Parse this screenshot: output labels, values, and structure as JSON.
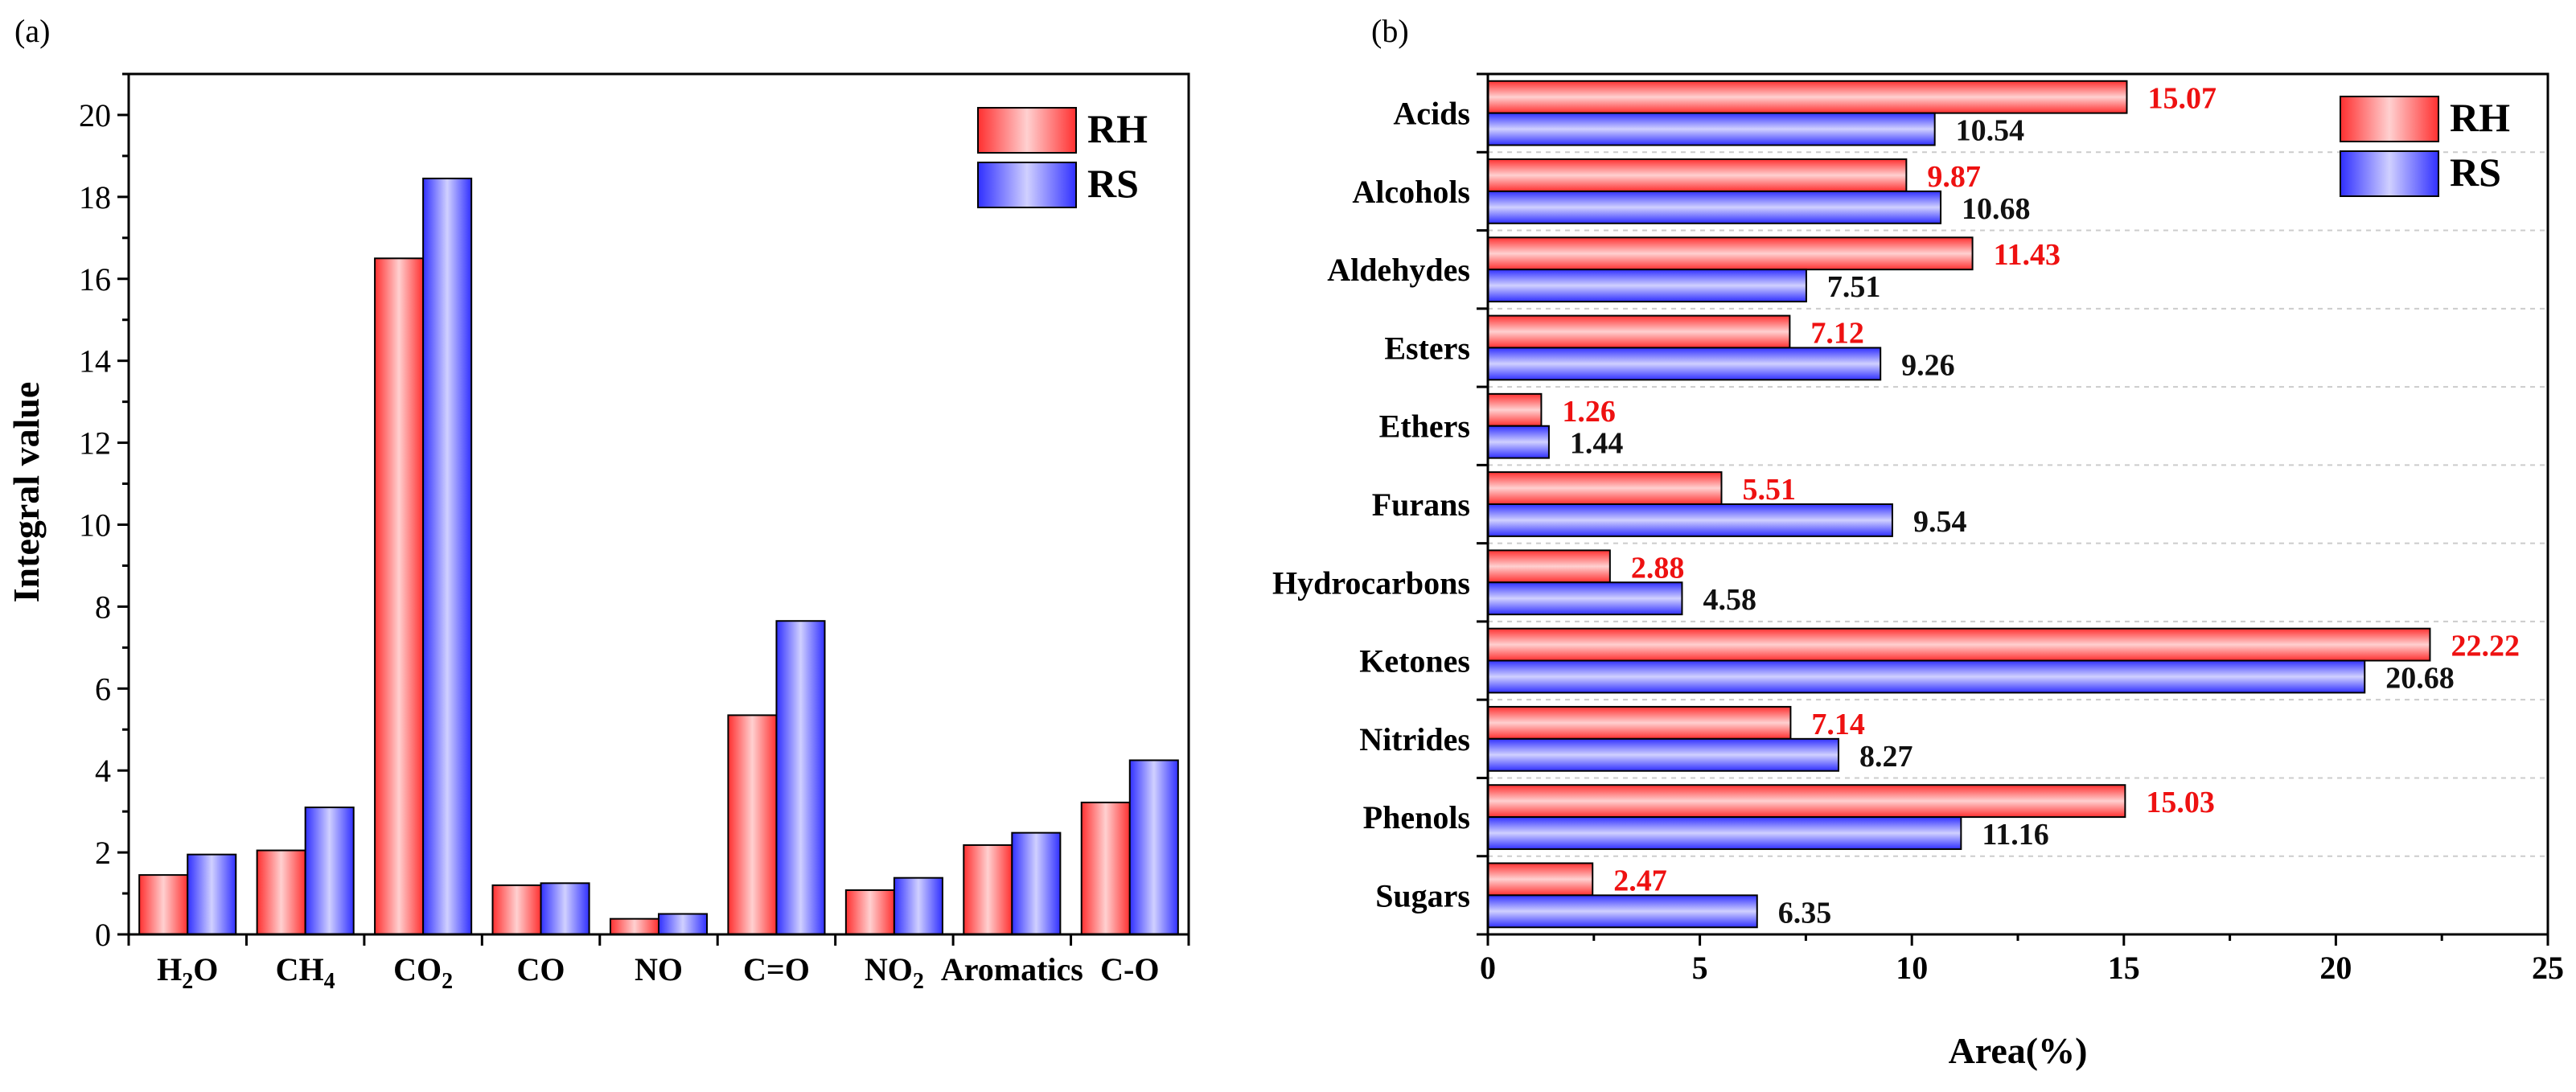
{
  "colors": {
    "rh_fill": "#ff4a4a",
    "rs_fill": "#4a4aff",
    "rh_label": "#ee1111",
    "rs_label": "#111111",
    "axis": "#000000",
    "grid": "#cccccc"
  },
  "chart_data": [
    {
      "panel_label": "(a)",
      "type": "bar",
      "orientation": "vertical",
      "ylabel": "Integral value",
      "xlabel": "",
      "ylim": [
        0,
        21
      ],
      "yticks": [
        "0",
        "2",
        "4",
        "6",
        "8",
        "10",
        "12",
        "14",
        "16",
        "18",
        "20"
      ],
      "categories": [
        {
          "main": "H",
          "sub": "2",
          "tail": "O"
        },
        {
          "main": "CH",
          "sub": "4",
          "tail": ""
        },
        {
          "main": "CO",
          "sub": "2",
          "tail": ""
        },
        {
          "main": "CO",
          "sub": "",
          "tail": ""
        },
        {
          "main": "NO",
          "sub": "",
          "tail": ""
        },
        {
          "main": "C=O",
          "sub": "",
          "tail": ""
        },
        {
          "main": "NO",
          "sub": "2",
          "tail": ""
        },
        {
          "main": "Aromatics",
          "sub": "",
          "tail": ""
        },
        {
          "main": "C-O",
          "sub": "",
          "tail": ""
        }
      ],
      "series": [
        {
          "name": "RH",
          "values": [
            1.45,
            2.05,
            16.5,
            1.2,
            0.38,
            5.35,
            1.08,
            2.18,
            3.22
          ]
        },
        {
          "name": "RS",
          "values": [
            1.95,
            3.1,
            18.45,
            1.25,
            0.5,
            7.65,
            1.38,
            2.48,
            4.25
          ]
        }
      ],
      "legend": [
        "RH",
        "RS"
      ],
      "legend_position": "top-right"
    },
    {
      "panel_label": "(b)",
      "type": "bar",
      "orientation": "horizontal",
      "xlabel": "Area(%)",
      "ylabel": "",
      "xlim": [
        0,
        25
      ],
      "xticks": [
        "0",
        "5",
        "10",
        "15",
        "20",
        "25"
      ],
      "categories": [
        "Acids",
        "Alcohols",
        "Aldehydes",
        "Esters",
        "Ethers",
        "Furans",
        "Hydrocarbons",
        "Ketones",
        "Nitrides",
        "Phenols",
        "Sugars"
      ],
      "series": [
        {
          "name": "RH",
          "values": [
            15.07,
            9.87,
            11.43,
            7.12,
            1.26,
            5.51,
            2.88,
            22.22,
            7.14,
            15.03,
            2.47
          ],
          "labels": [
            "15.07",
            "9.87",
            "11.43",
            "7.12",
            "1.26",
            "5.51",
            "2.88",
            "22.22",
            "7.14",
            "15.03",
            "2.47"
          ]
        },
        {
          "name": "RS",
          "values": [
            10.54,
            10.68,
            7.51,
            9.26,
            1.44,
            9.54,
            4.58,
            20.68,
            8.27,
            11.16,
            6.35
          ],
          "labels": [
            "10.54",
            "10.68",
            "7.51",
            "9.26",
            "1.44",
            "9.54",
            "4.58",
            "20.68",
            "8.27",
            "11.16",
            "6.35"
          ]
        }
      ],
      "grid": true,
      "legend": [
        "RH",
        "RS"
      ],
      "legend_position": "top-right"
    }
  ]
}
